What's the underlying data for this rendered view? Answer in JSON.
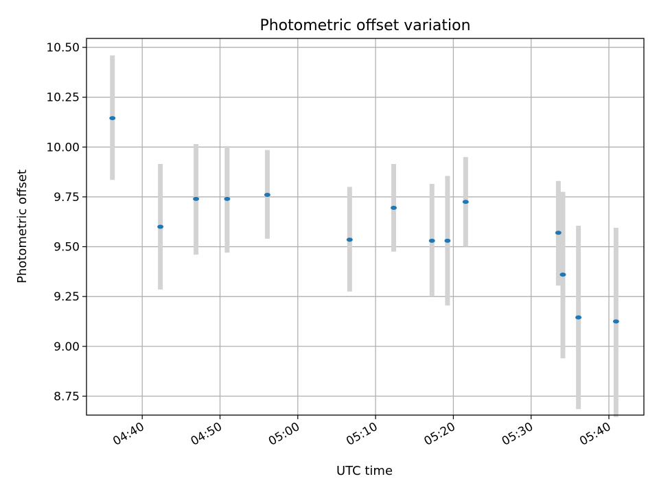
{
  "chart_data": {
    "type": "scatter",
    "title": "Photometric offset variation",
    "xlabel": "UTC time",
    "ylabel": "Photometric offset",
    "xlim": [
      "04:32:50",
      "05:44:30"
    ],
    "ylim": [
      8.655,
      10.545
    ],
    "x_ticks": [
      "04:40",
      "04:50",
      "05:00",
      "05:10",
      "05:20",
      "05:30",
      "05:40"
    ],
    "y_ticks": [
      "8.75",
      "9.00",
      "9.25",
      "9.50",
      "9.75",
      "10.00",
      "10.25",
      "10.50"
    ],
    "grid": true,
    "colors": {
      "marker": "#1f77b4",
      "errorbar": "#d3d3d3",
      "grid": "#b0b0b0"
    },
    "points": [
      {
        "t": "04:36:10",
        "y": 10.145,
        "lo": 9.835,
        "hi": 10.46
      },
      {
        "t": "04:42:20",
        "y": 9.6,
        "lo": 9.285,
        "hi": 9.915
      },
      {
        "t": "04:46:55",
        "y": 9.74,
        "lo": 9.46,
        "hi": 10.015
      },
      {
        "t": "04:50:55",
        "y": 9.74,
        "lo": 9.47,
        "hi": 10.005
      },
      {
        "t": "04:56:05",
        "y": 9.76,
        "lo": 9.54,
        "hi": 9.985
      },
      {
        "t": "05:06:40",
        "y": 9.535,
        "lo": 9.275,
        "hi": 9.8
      },
      {
        "t": "05:12:20",
        "y": 9.695,
        "lo": 9.475,
        "hi": 9.915
      },
      {
        "t": "05:17:15",
        "y": 9.53,
        "lo": 9.25,
        "hi": 9.815
      },
      {
        "t": "05:19:15",
        "y": 9.53,
        "lo": 9.205,
        "hi": 9.855
      },
      {
        "t": "05:21:35",
        "y": 9.725,
        "lo": 9.5,
        "hi": 9.95
      },
      {
        "t": "05:33:30",
        "y": 9.57,
        "lo": 9.305,
        "hi": 9.83
      },
      {
        "t": "05:34:05",
        "y": 9.36,
        "lo": 8.94,
        "hi": 9.775
      },
      {
        "t": "05:36:05",
        "y": 9.145,
        "lo": 8.685,
        "hi": 9.605
      },
      {
        "t": "05:40:55",
        "y": 9.125,
        "lo": 8.645,
        "hi": 9.595
      }
    ]
  }
}
